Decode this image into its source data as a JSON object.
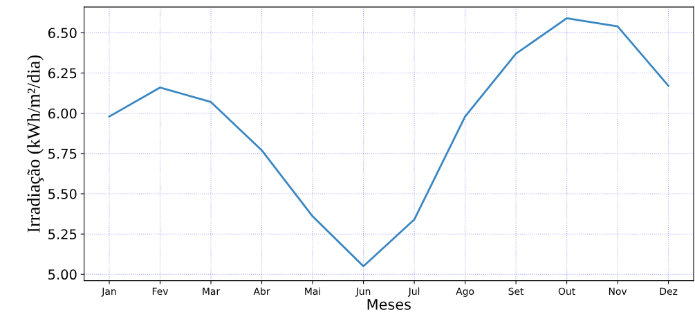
{
  "chart_data": {
    "type": "line",
    "xlabel": "Meses",
    "ylabel": "Irradiação (kWh/m²/dia)",
    "categories": [
      "Jan",
      "Fev",
      "Mar",
      "Abr",
      "Mai",
      "Jun",
      "Jul",
      "Ago",
      "Set",
      "Out",
      "Nov",
      "Dez"
    ],
    "series": [
      {
        "color": "#3a87c2",
        "values": [
          5.98,
          6.16,
          6.07,
          5.77,
          5.36,
          5.05,
          5.34,
          5.98,
          6.37,
          6.59,
          6.54,
          6.17
        ]
      }
    ],
    "ylim": [
      4.96,
      6.66
    ],
    "yticks": [
      {
        "value": 5.0,
        "label": "5.00"
      },
      {
        "value": 5.25,
        "label": "5.25"
      },
      {
        "value": 5.5,
        "label": "5.50"
      },
      {
        "value": 5.75,
        "label": "5.75"
      },
      {
        "value": 6.0,
        "label": "6.00"
      },
      {
        "value": 6.25,
        "label": "6.25"
      },
      {
        "value": 6.5,
        "label": "6.50"
      }
    ],
    "grid": true,
    "line_style": "solid",
    "marker": "none"
  }
}
